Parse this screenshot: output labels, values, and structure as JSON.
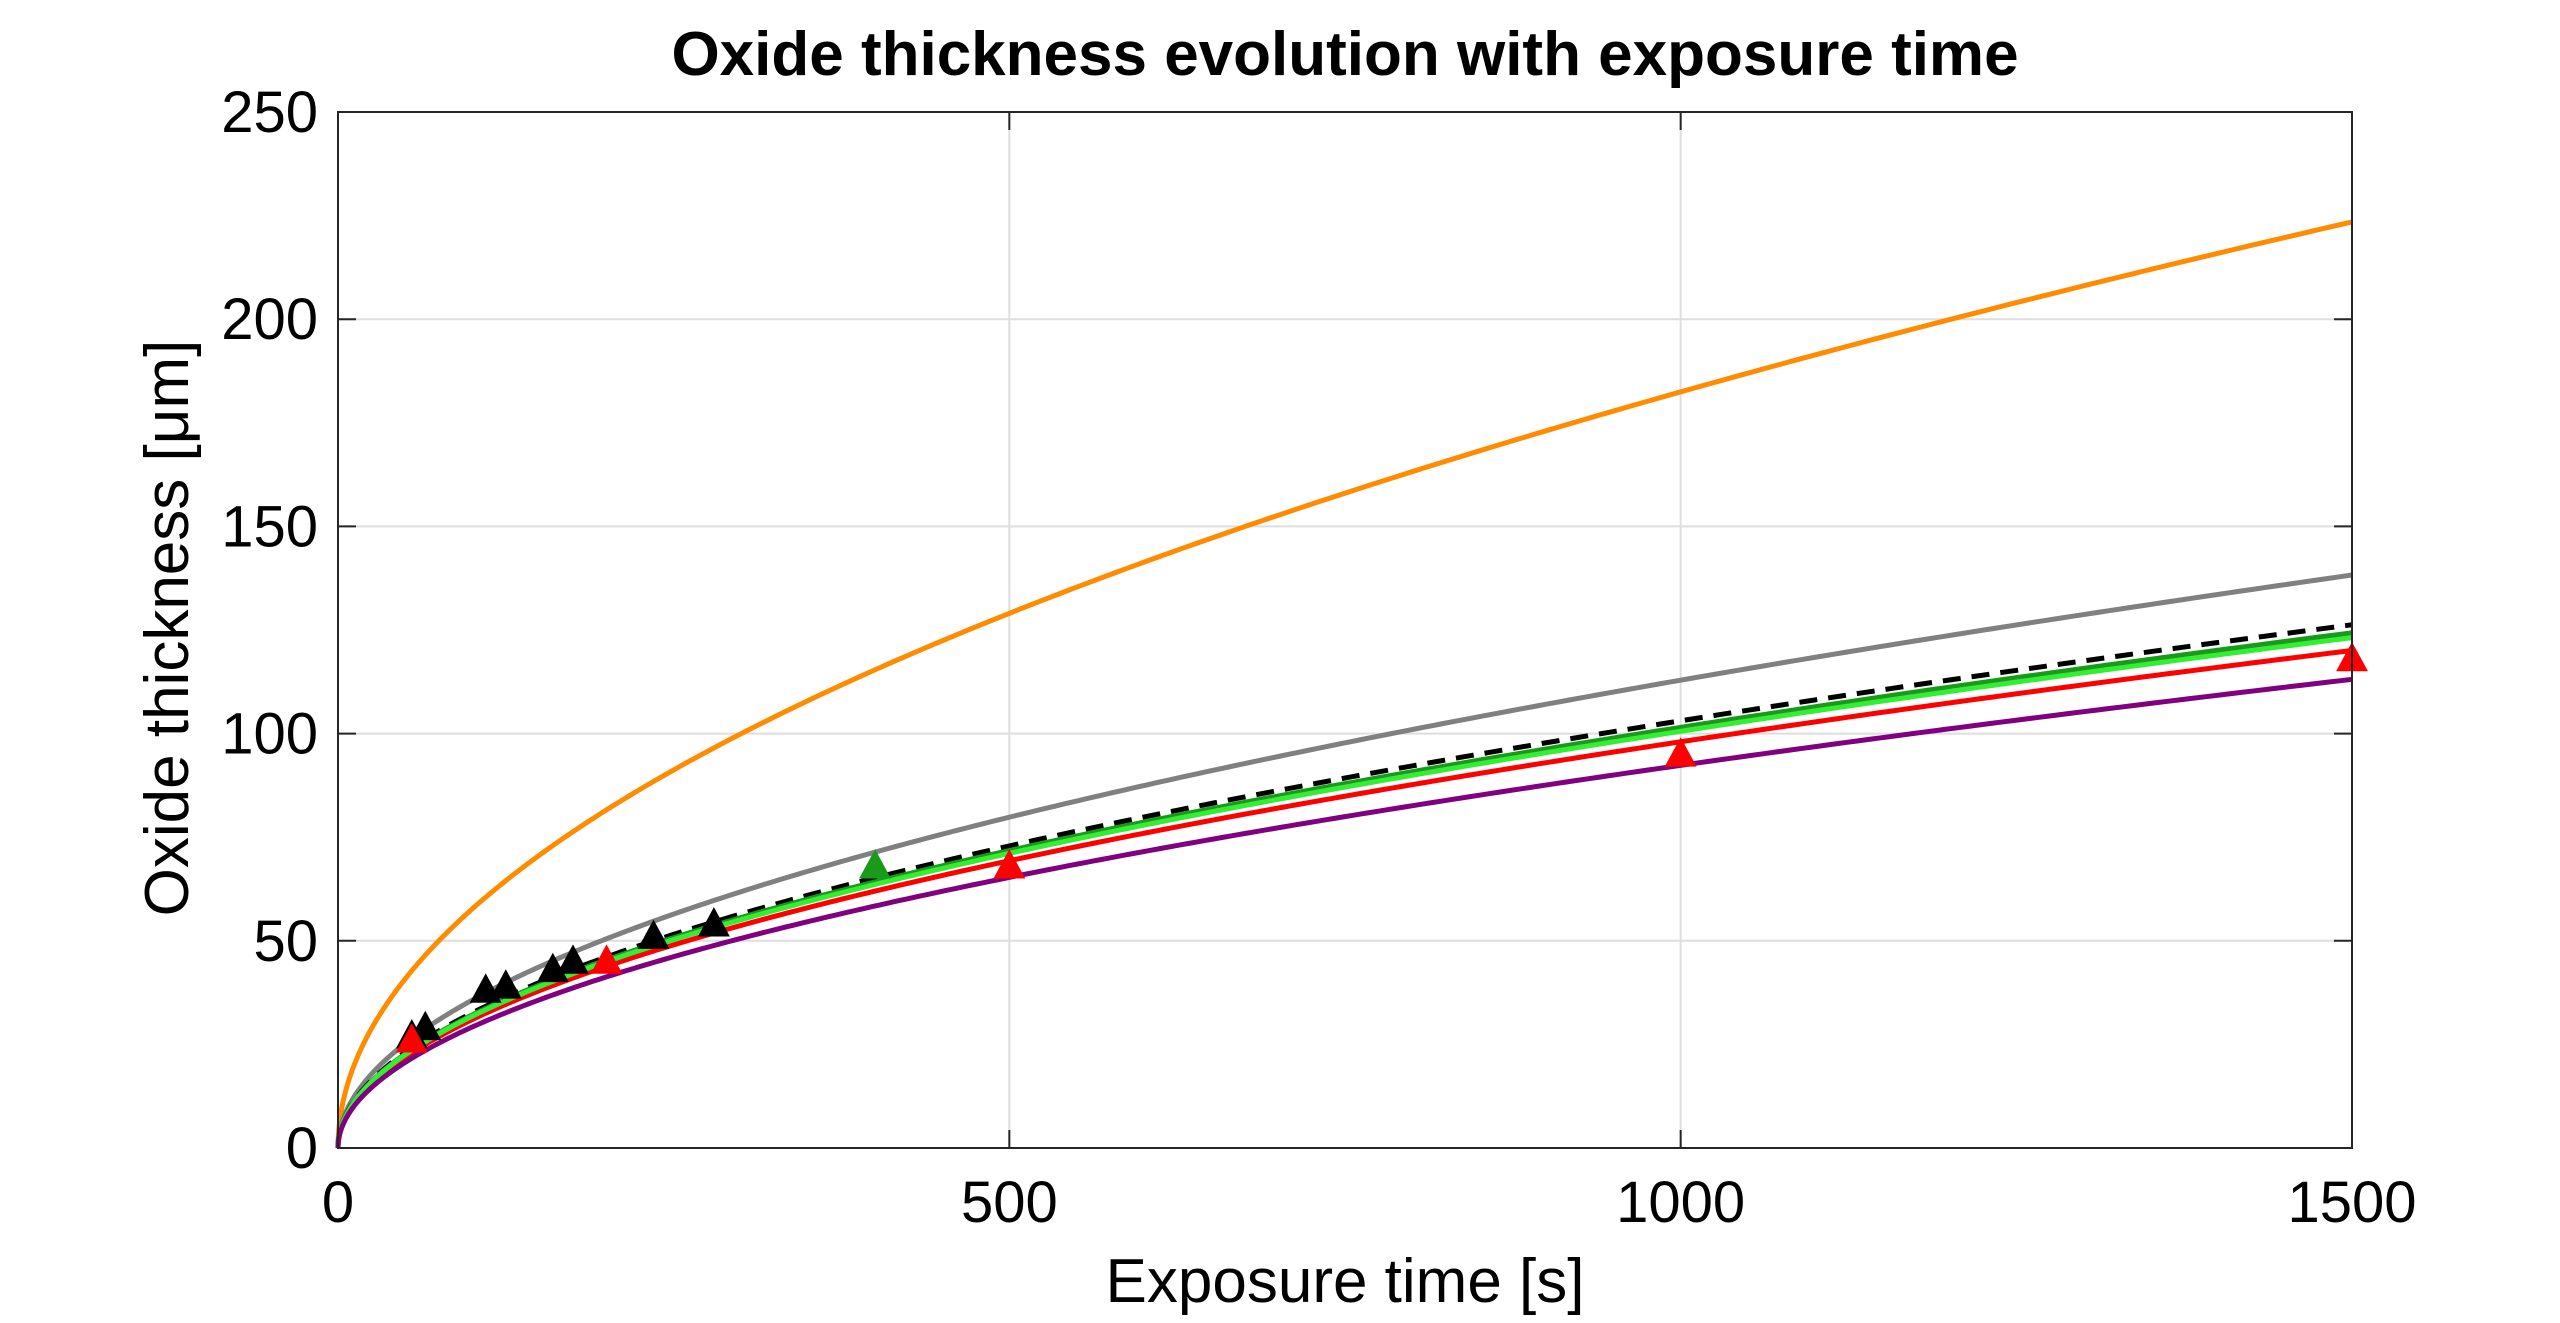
{
  "chart_data": {
    "type": "line",
    "title": "Oxide thickness evolution with exposure time",
    "xlabel": "Exposure time [s]",
    "ylabel": "Oxide thickness [μm]",
    "xlim": [
      0,
      1500
    ],
    "ylim": [
      0,
      250
    ],
    "xticks": [
      0,
      500,
      1000,
      1500
    ],
    "yticks": [
      0,
      50,
      100,
      150,
      200,
      250
    ],
    "grid": true,
    "series": [
      {
        "style": "solid",
        "color": "#ff8c00",
        "k": 5.77
      },
      {
        "style": "solid",
        "color": "#808080",
        "k": 3.57
      },
      {
        "style": "dashed",
        "color": "#000000",
        "k": 3.26
      },
      {
        "style": "solid",
        "color": "#1a9a1a",
        "k": 3.21
      },
      {
        "style": "solid",
        "color": "#ff0000",
        "k": 3.1
      },
      {
        "style": "solid",
        "color": "#33ee33",
        "k": 3.18
      },
      {
        "style": "solid",
        "color": "#800080",
        "k": 2.92
      }
    ],
    "markers": [
      {
        "color": "#000000",
        "points": [
          [
            55,
            27
          ],
          [
            65,
            29
          ],
          [
            110,
            38
          ],
          [
            125,
            39
          ],
          [
            160,
            43
          ],
          [
            175,
            45
          ],
          [
            235,
            51
          ],
          [
            280,
            54
          ]
        ]
      },
      {
        "color": "#1a9a1a",
        "points": [
          [
            400,
            68
          ]
        ]
      },
      {
        "color": "#ff0000",
        "points": [
          [
            55,
            26
          ],
          [
            200,
            45
          ],
          [
            500,
            68
          ],
          [
            1000,
            95
          ],
          [
            1500,
            118
          ]
        ]
      }
    ]
  }
}
